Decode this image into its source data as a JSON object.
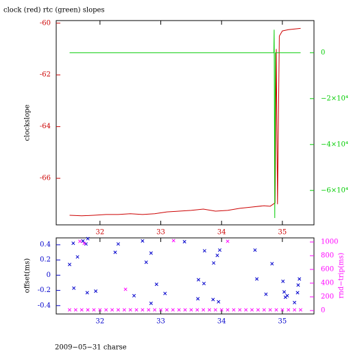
{
  "chart_data": [
    {
      "type": "line",
      "title": "clock (red) rtc (green) slopes",
      "ylabel": "clockslope",
      "xlim": [
        31.28,
        35.52
      ],
      "xticks": [
        32,
        33,
        34,
        35
      ],
      "ylim": [
        -67.8,
        -59.9
      ],
      "yticks": [
        -66,
        -64,
        -62,
        -60
      ],
      "ycolor": "#cc0000",
      "y2lim": [
        -75000,
        14000
      ],
      "y2ticks": [
        {
          "value": -60000,
          "label": "−6×10⁴"
        },
        {
          "value": -40000,
          "label": "−4×10⁴"
        },
        {
          "value": -20000,
          "label": "−2×10⁴"
        },
        0
      ],
      "y2color": "#00cc00",
      "series": [
        {
          "color": "#cc0000",
          "axis": "y",
          "x": [
            31.5,
            31.7,
            31.9,
            32.1,
            32.3,
            32.5,
            32.7,
            32.9,
            33.1,
            33.3,
            33.5,
            33.7,
            33.9,
            34.1,
            34.3,
            34.5,
            34.7,
            34.8,
            34.88,
            34.9,
            34.92,
            34.95,
            35.0,
            35.1,
            35.3
          ],
          "values": [
            -67.43,
            -67.45,
            -67.43,
            -67.4,
            -67.4,
            -67.37,
            -67.4,
            -67.37,
            -67.3,
            -67.27,
            -67.24,
            -67.19,
            -67.27,
            -67.24,
            -67.16,
            -67.11,
            -67.06,
            -67.08,
            -66.95,
            -61.0,
            -67.0,
            -60.5,
            -60.3,
            -60.25,
            -60.2
          ]
        },
        {
          "color": "#00cc00",
          "axis": "y2",
          "x": [
            31.5,
            34.86,
            34.865,
            34.875,
            34.885,
            35.3
          ],
          "values": [
            0,
            0,
            10000,
            -72000,
            0,
            0
          ]
        }
      ]
    },
    {
      "type": "scatter",
      "ylabel": "offset(ms)",
      "y2label": "rnd−trip(ms)",
      "caption": "2009−05−31 charse",
      "xlim": [
        31.28,
        35.52
      ],
      "xticks": [
        32,
        33,
        34,
        35
      ],
      "ylim": [
        -0.51,
        0.49
      ],
      "yticks": [
        -0.4,
        -0.2,
        0,
        0.2,
        0.4
      ],
      "ycolor": "#0000cc",
      "y2lim": [
        -50,
        1060
      ],
      "y2ticks": [
        0,
        200,
        400,
        600,
        800,
        1000
      ],
      "y2color": "#ff00ff",
      "series": [
        {
          "color": "#0000cc",
          "axis": "y",
          "x": [
            31.5,
            31.56,
            31.57,
            31.63,
            31.72,
            31.77,
            31.79,
            31.8,
            31.93,
            32.25,
            32.3,
            32.56,
            32.7,
            32.76,
            32.84,
            32.84,
            32.93,
            33.07,
            33.39,
            33.72,
            33.62,
            33.71,
            33.61,
            33.86,
            33.87,
            33.93,
            33.97,
            33.95,
            34.55,
            34.58,
            34.73,
            34.83,
            35.01,
            35.03,
            35.05,
            35.08,
            35.2,
            35.28,
            35.26,
            35.25
          ],
          "values": [
            0.14,
            0.42,
            -0.17,
            0.24,
            0.45,
            0.41,
            -0.23,
            0.48,
            -0.21,
            0.3,
            0.41,
            -0.27,
            0.45,
            0.17,
            0.29,
            -0.37,
            -0.12,
            -0.24,
            0.44,
            0.32,
            -0.06,
            -0.11,
            -0.31,
            -0.32,
            0.16,
            0.26,
            0.33,
            -0.35,
            0.33,
            -0.05,
            -0.25,
            0.15,
            -0.08,
            -0.22,
            -0.29,
            -0.27,
            -0.36,
            -0.05,
            -0.13,
            -0.23
          ]
        },
        {
          "color": "#ff00ff",
          "axis": "y2",
          "x": [
            31.5,
            31.6,
            31.7,
            31.8,
            31.9,
            32.0,
            32.1,
            32.2,
            32.3,
            32.4,
            32.5,
            32.6,
            32.7,
            32.8,
            32.9,
            33.0,
            33.1,
            33.2,
            33.3,
            33.4,
            33.5,
            33.6,
            33.7,
            33.8,
            33.9,
            34.0,
            34.1,
            34.2,
            34.3,
            34.4,
            34.5,
            34.6,
            34.7,
            34.8,
            34.9,
            35.0,
            35.1,
            35.2,
            35.3,
            31.67,
            31.74,
            33.21,
            34.1,
            32.42
          ],
          "values": [
            10,
            10,
            10,
            10,
            10,
            10,
            10,
            10,
            10,
            10,
            10,
            10,
            10,
            10,
            10,
            10,
            10,
            10,
            10,
            10,
            10,
            10,
            10,
            10,
            10,
            10,
            10,
            10,
            10,
            10,
            10,
            10,
            10,
            10,
            10,
            10,
            10,
            10,
            10,
            1010,
            980,
            1020,
            1010,
            310
          ]
        }
      ]
    }
  ]
}
